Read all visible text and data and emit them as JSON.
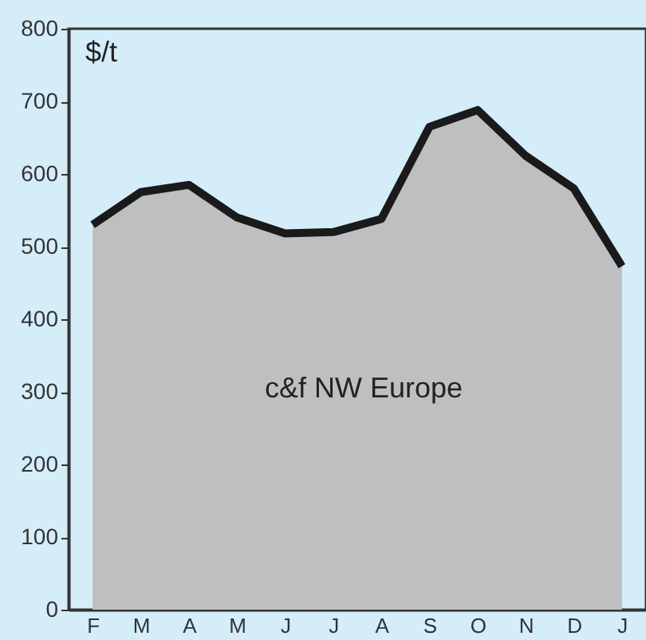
{
  "chart_data": {
    "type": "area",
    "ylabel": "$/t",
    "annotations": [
      "c&f NW Europe"
    ],
    "categories": [
      "F",
      "M",
      "A",
      "M",
      "J",
      "J",
      "A",
      "S",
      "O",
      "N",
      "D",
      "J"
    ],
    "series": [
      {
        "color": "#bebfc1",
        "values": [
          530,
          575,
          585,
          540,
          518,
          520,
          538,
          665,
          688,
          625,
          580,
          473
        ]
      }
    ],
    "ylim": [
      0,
      800
    ],
    "yticks": [
      0,
      100,
      200,
      300,
      400,
      500,
      600,
      700,
      800
    ],
    "grid": false
  }
}
